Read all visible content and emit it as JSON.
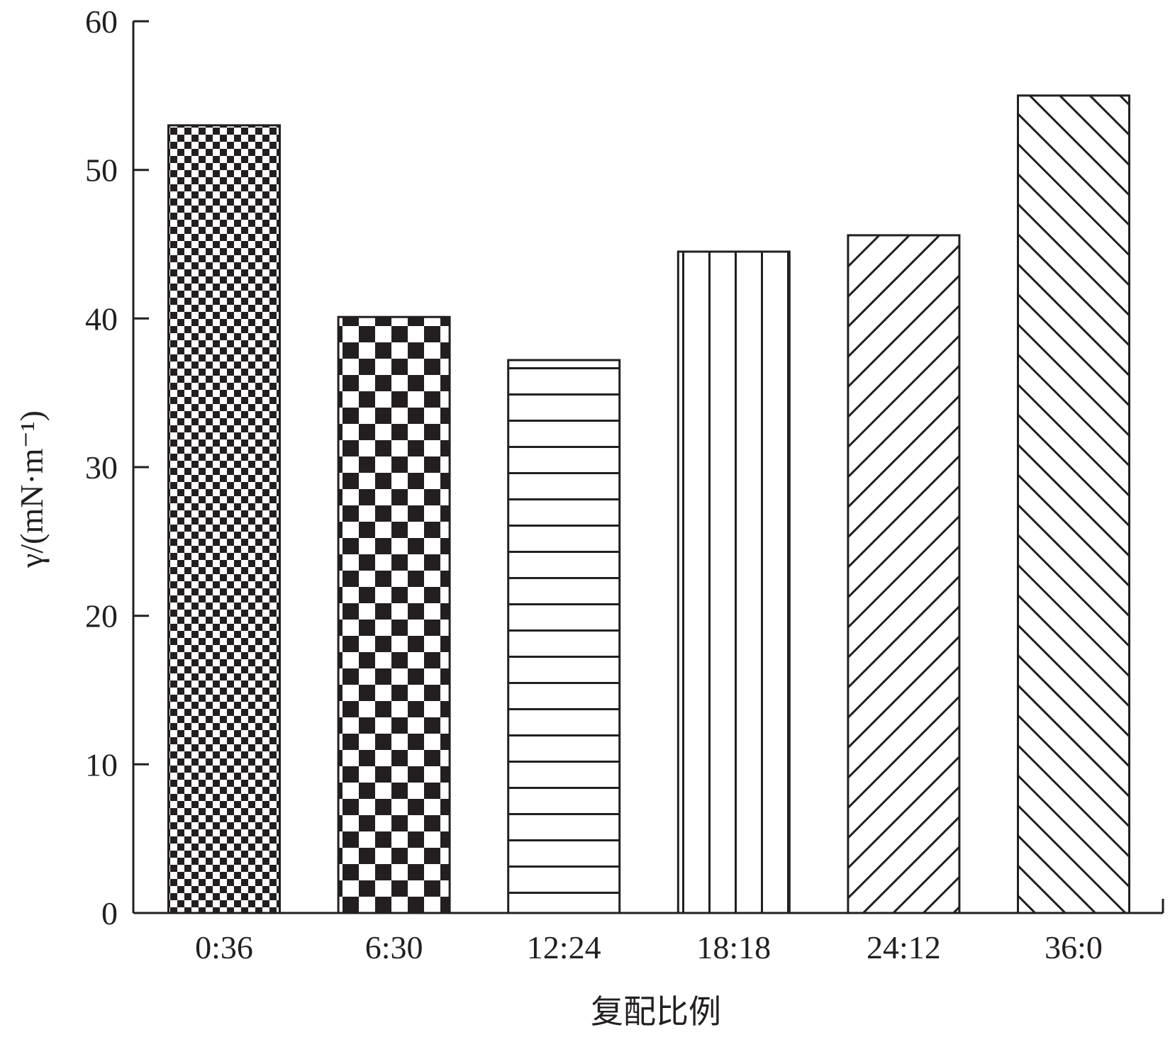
{
  "chart_data": {
    "type": "bar",
    "categories": [
      "0:36",
      "6:30",
      "12:24",
      "18:18",
      "24:12",
      "36:0"
    ],
    "values": [
      53.0,
      40.1,
      37.2,
      44.5,
      45.6,
      55.0
    ],
    "xlabel": "复配比例",
    "ylabel": "γ/(mN·m⁻¹)",
    "ylim": [
      0,
      60
    ],
    "yticks": [
      0,
      10,
      20,
      30,
      40,
      50,
      60
    ],
    "grid": false,
    "bar_fills": [
      "fine-checker",
      "coarse-checker",
      "horizontal-stripes",
      "vertical-stripes",
      "diagonal-forward",
      "diagonal-back"
    ],
    "colors": {
      "ink": "#231f20",
      "background": "#ffffff"
    }
  }
}
